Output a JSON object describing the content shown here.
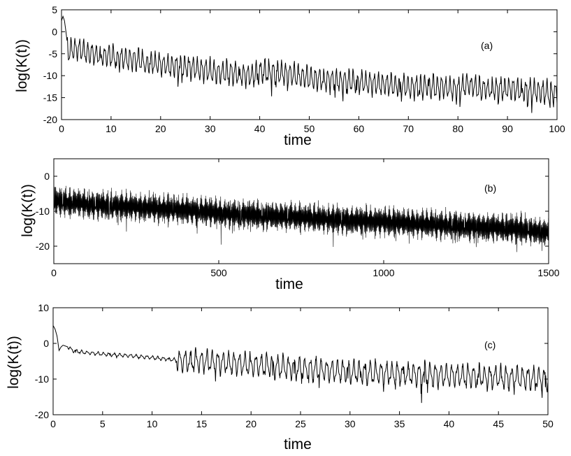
{
  "chart_data": [
    {
      "type": "line",
      "panel_label": "(a)",
      "xlabel": "time",
      "ylabel": "log(K(t))",
      "xlim": [
        0,
        100
      ],
      "ylim": [
        -20,
        5
      ],
      "xticks": [
        0,
        10,
        20,
        30,
        40,
        50,
        60,
        70,
        80,
        90,
        100
      ],
      "yticks": [
        5,
        0,
        -5,
        -10,
        -15,
        -20
      ],
      "grid": false,
      "series": [
        {
          "x": [
            0,
            0.3,
            0.6,
            0.9,
            1.2,
            1.5,
            2,
            3,
            5,
            8,
            10,
            15,
            20,
            25,
            30,
            35,
            38,
            40,
            45,
            50,
            55,
            60,
            65,
            70,
            75,
            80,
            82,
            85,
            90,
            95,
            100
          ],
          "y": [
            2.5,
            3.5,
            2.5,
            0,
            -3,
            -5,
            -4,
            -4,
            -4.5,
            -5.5,
            -5.5,
            -6.5,
            -7.5,
            -8,
            -9,
            -9.5,
            -10,
            -9,
            -9.5,
            -10.5,
            -11,
            -11.5,
            -12,
            -12.5,
            -12.5,
            -13,
            -12,
            -13,
            -13,
            -13.5,
            -14
          ]
        }
      ]
    },
    {
      "type": "line",
      "panel_label": "(b)",
      "xlabel": "time",
      "ylabel": "log(K(t))",
      "xlim": [
        0,
        1500
      ],
      "ylim": [
        -25,
        5
      ],
      "xticks": [
        0,
        500,
        1000,
        1500
      ],
      "yticks": [
        0,
        -10,
        -20
      ],
      "grid": false,
      "series": [
        {
          "x": [
            0,
            100,
            200,
            300,
            400,
            500,
            600,
            700,
            800,
            900,
            1000,
            1100,
            1200,
            1300,
            1400,
            1500
          ],
          "y": [
            -7,
            -8,
            -8.5,
            -9,
            -9.5,
            -10.5,
            -11,
            -11.5,
            -12,
            -12.5,
            -13,
            -13.5,
            -14,
            -14.5,
            -15,
            -16
          ]
        }
      ]
    },
    {
      "type": "line",
      "panel_label": "(c)",
      "xlabel": "time",
      "ylabel": "log(K(t))",
      "xlim": [
        0,
        50
      ],
      "ylim": [
        -20,
        10
      ],
      "xticks": [
        0,
        5,
        10,
        15,
        20,
        25,
        30,
        35,
        40,
        45,
        50
      ],
      "yticks": [
        10,
        0,
        -10,
        -20
      ],
      "grid": false,
      "series": [
        {
          "x": [
            0,
            0.2,
            0.4,
            0.6,
            0.8,
            1,
            1.5,
            2,
            3,
            5,
            8,
            10,
            12,
            13,
            15,
            20,
            25,
            30,
            35,
            40,
            45,
            50
          ],
          "y": [
            5,
            4,
            2,
            -2,
            -1,
            -0.5,
            -1,
            -2,
            -2.5,
            -3,
            -3.5,
            -4,
            -4.5,
            -5,
            -5,
            -6,
            -7,
            -8,
            -8.5,
            -9,
            -9.5,
            -10
          ]
        }
      ]
    }
  ]
}
